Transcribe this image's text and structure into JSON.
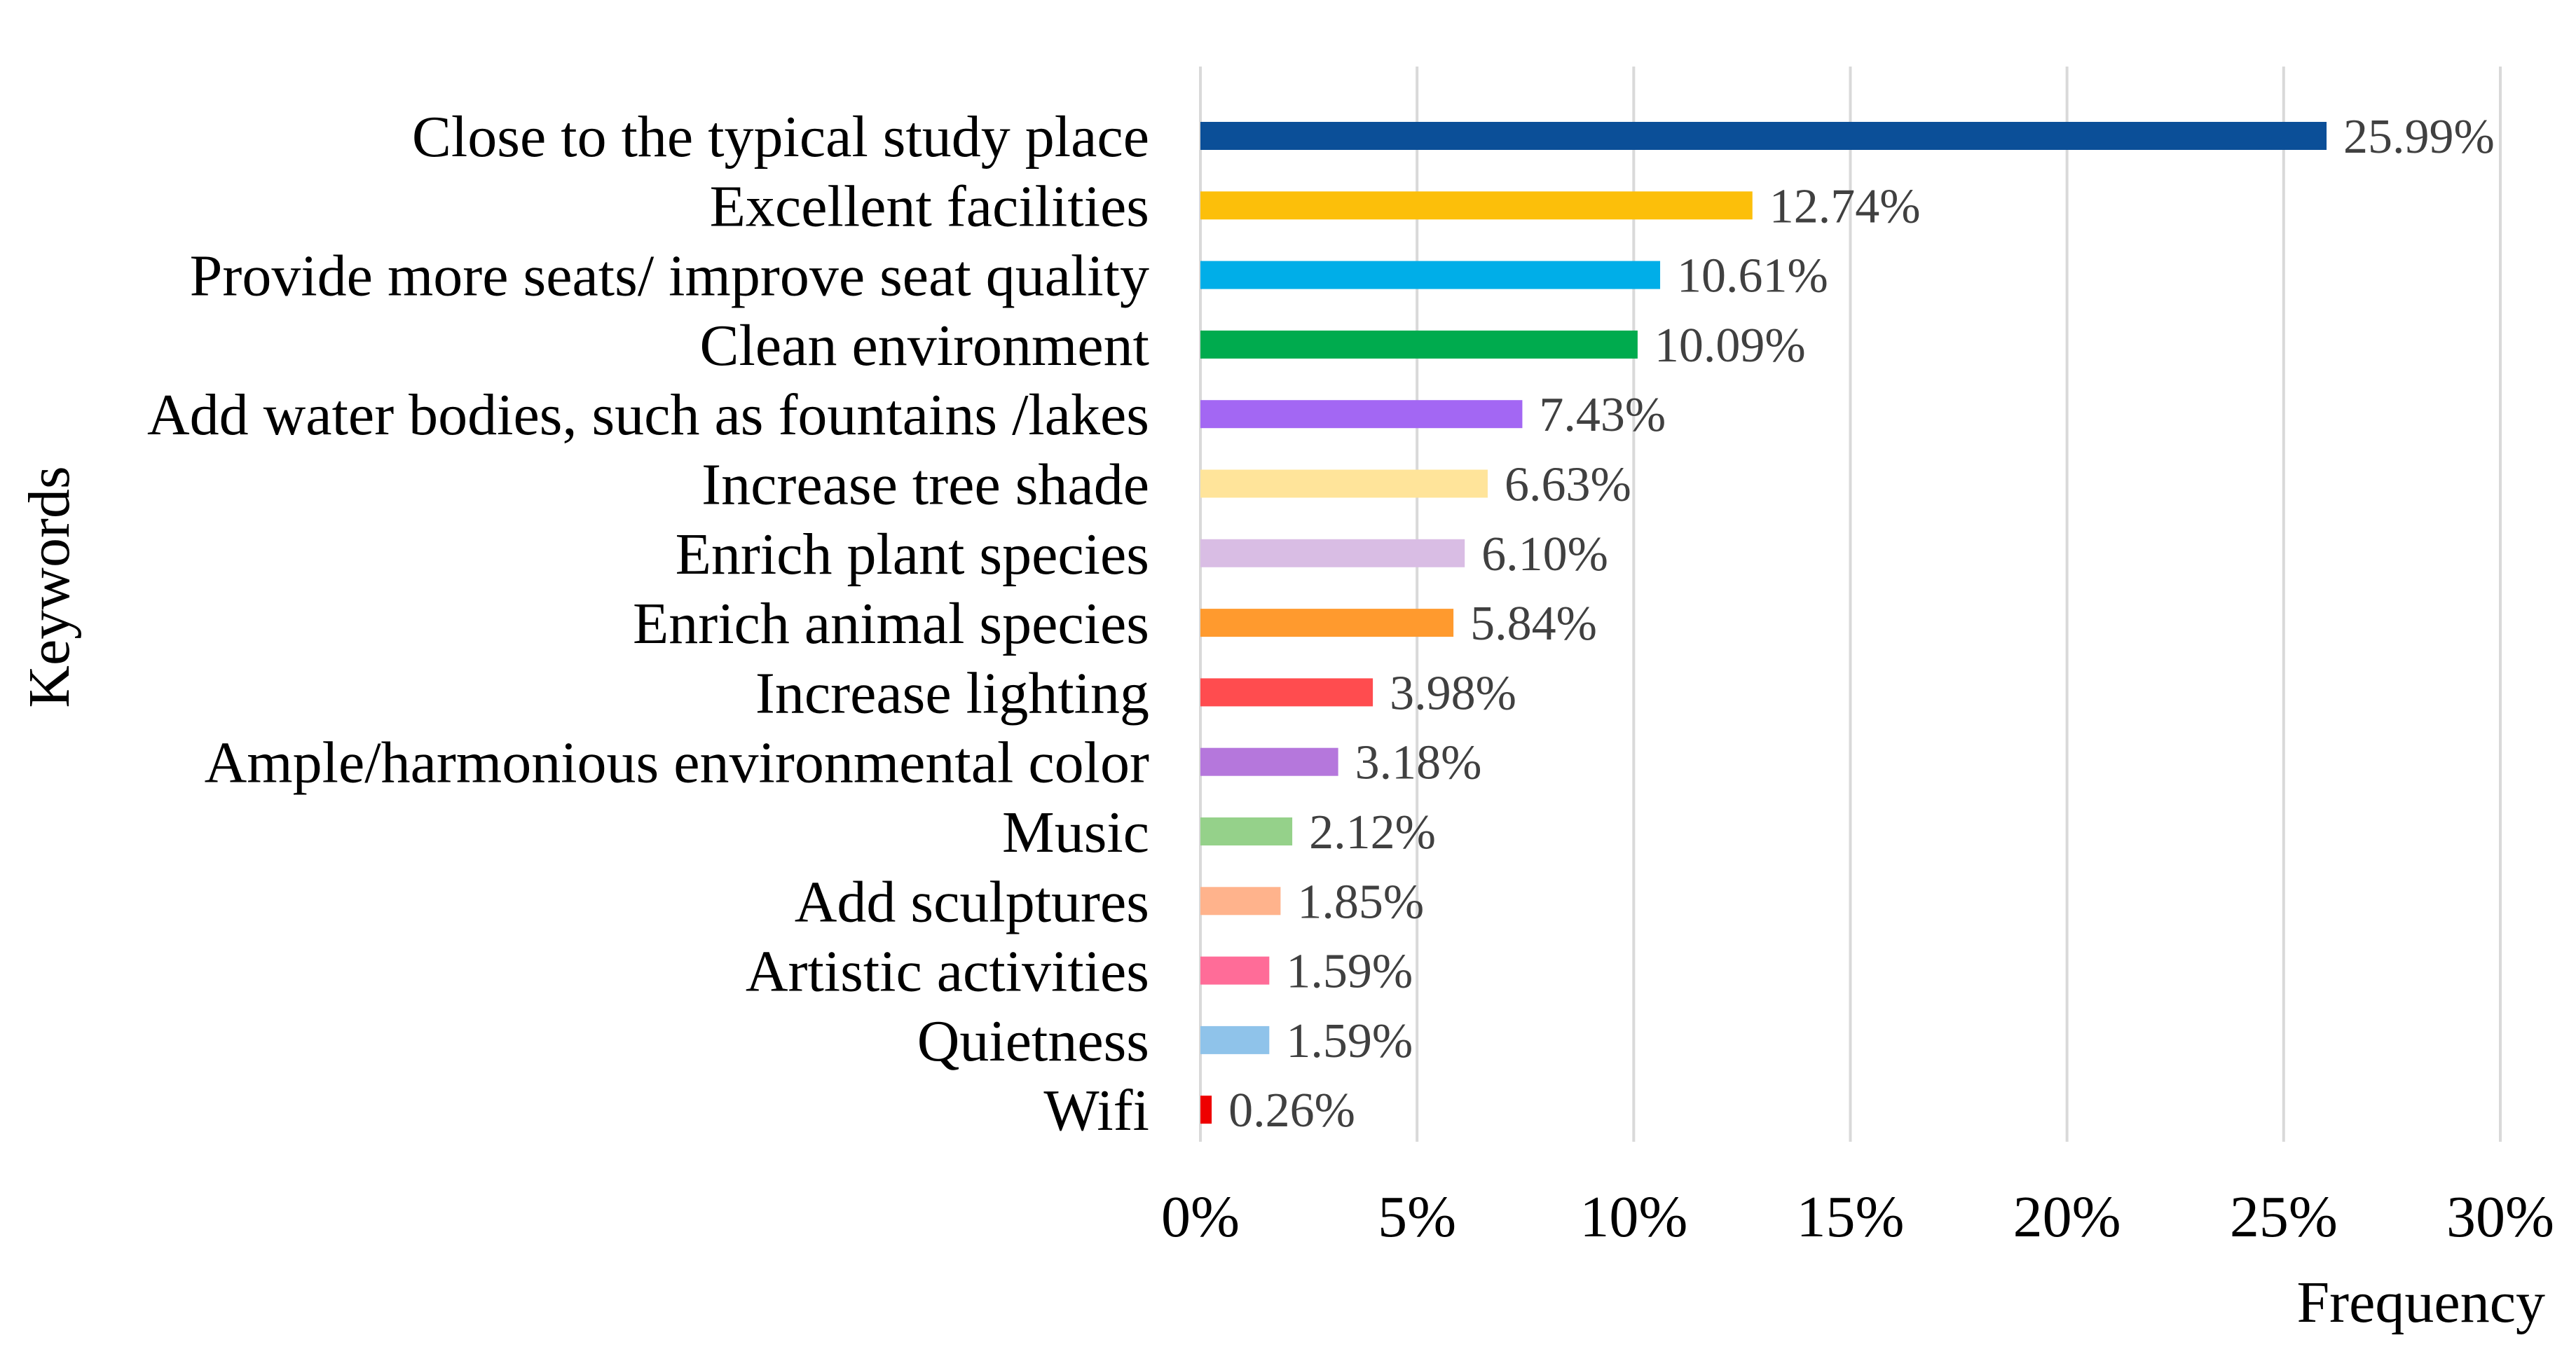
{
  "chart_data": {
    "type": "bar",
    "orientation": "horizontal",
    "title": "",
    "xlabel": "Frequency",
    "ylabel": "Keywords",
    "xlim": [
      0,
      30
    ],
    "x_ticks": [
      0,
      5,
      10,
      15,
      20,
      25,
      30
    ],
    "x_tick_labels": [
      "0%",
      "5%",
      "10%",
      "15%",
      "20%",
      "25%",
      "30%"
    ],
    "grid": "vertical",
    "legend": "none",
    "categories": [
      "Close to the typical study place",
      "Excellent facilities",
      "Provide more seats/ improve seat quality",
      "Clean environment",
      "Add water bodies, such as fountains /lakes",
      "Increase tree shade",
      "Enrich plant species",
      "Enrich animal species",
      "Increase lighting",
      "Ample/harmonious environmental color",
      "Music",
      "Add sculptures",
      "Artistic activities",
      "Quietness",
      "Wifi"
    ],
    "values": [
      25.99,
      12.74,
      10.61,
      10.09,
      7.43,
      6.63,
      6.1,
      5.84,
      3.98,
      3.18,
      2.12,
      1.85,
      1.59,
      1.59,
      0.26
    ],
    "value_labels": [
      "25.99%",
      "12.74%",
      "10.61%",
      "10.09%",
      "7.43%",
      "6.63%",
      "6.10%",
      "5.84%",
      "3.98%",
      "3.18%",
      "2.12%",
      "1.85%",
      "1.59%",
      "1.59%",
      "0.26%"
    ],
    "colors": [
      "#0b4f98",
      "#fcbf0a",
      "#00aee8",
      "#00ab4e",
      "#a367f3",
      "#ffe49a",
      "#d9bde4",
      "#ff9a2e",
      "#ff4c4f",
      "#b577dc",
      "#95d18a",
      "#ffb38c",
      "#ff6c98",
      "#8fc3ea",
      "#ee0000"
    ]
  }
}
